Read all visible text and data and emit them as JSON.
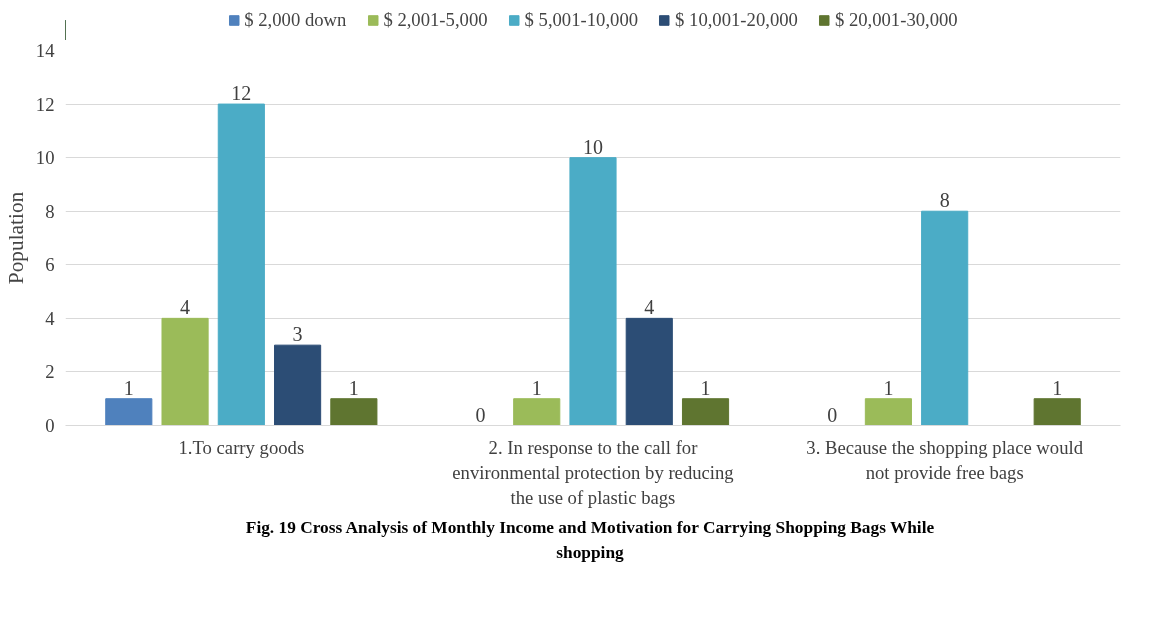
{
  "chart_data": {
    "type": "bar",
    "title": "Fig. 19 Cross Analysis of Monthly Income  and Motivation for Carrying Shopping Bags While shopping",
    "ylabel": "Population",
    "categories": [
      "1.To carry goods",
      "2. In response to the call for environmental protection by reducing the use of plastic bags",
      "3. Because the shopping place would not provide free bags"
    ],
    "series": [
      {
        "name": "$ 2,000 down",
        "color": "#4f81bd",
        "values": [
          1,
          0,
          0
        ]
      },
      {
        "name": "$ 2,001-5,000",
        "color": "#9bbb59",
        "values": [
          4,
          1,
          1
        ]
      },
      {
        "name": "$ 5,001-10,000",
        "color": "#4bacc6",
        "values": [
          12,
          10,
          8
        ]
      },
      {
        "name": "$ 10,001-20,000",
        "color": "#2c4d75",
        "values": [
          3,
          4,
          null
        ]
      },
      {
        "name": "$ 20,001-30,000",
        "color": "#5f7530",
        "values": [
          1,
          1,
          1
        ]
      }
    ],
    "ylim": [
      0,
      14
    ],
    "yticks": [
      0,
      2,
      4,
      6,
      8,
      10,
      12,
      14
    ],
    "grid": "y",
    "legend": "top",
    "data_labels": true
  }
}
